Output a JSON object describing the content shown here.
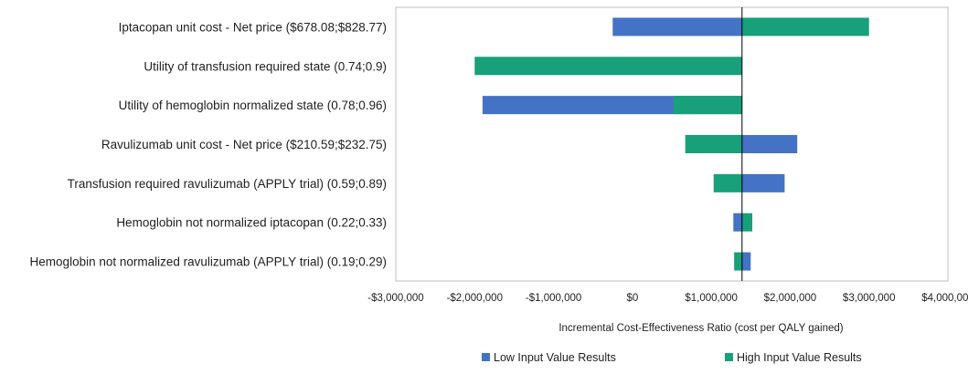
{
  "chart_data": {
    "type": "tornado",
    "xlabel": "Incremental Cost-Effectiveness Ratio (cost per QALY gained)",
    "xlim": [
      -3000000,
      4000000
    ],
    "xticks": [
      -3000000,
      -2000000,
      -1000000,
      0,
      1000000,
      2000000,
      3000000,
      4000000
    ],
    "xtick_labels": [
      "-$3,000,000",
      "-$2,000,000",
      "-$1,000,000",
      "$0",
      "$1,000,000",
      "$2,000,000",
      "$3,000,000",
      "$4,000,000"
    ],
    "base_value": 1390000,
    "categories": [
      "Iptacopan unit cost - Net price ($678.08;$828.77)",
      "Utility of transfusion required state (0.74;0.9)",
      "Utility of hemoglobin normalized state (0.78;0.96)",
      "Ravulizumab unit cost - Net price ($210.59;$232.75)",
      "Transfusion required ravulizumab (APPLY trial) (0.59;0.89)",
      "Hemoglobin not normalized iptacopan (0.22;0.33)",
      "Hemoglobin not normalized ravulizumab (APPLY trial) (0.19;0.29)"
    ],
    "series": [
      {
        "name": "Low Input Value Results",
        "color": "#4472C4",
        "values": [
          -250000,
          1390000,
          -1900000,
          2090000,
          1930000,
          1280000,
          1500000
        ]
      },
      {
        "name": "High Input Value Results",
        "color": "#17A07A",
        "values": [
          3000000,
          -2000000,
          520000,
          670000,
          1030000,
          1520000,
          1290000
        ]
      }
    ],
    "legend_position": "bottom",
    "grid": false
  }
}
